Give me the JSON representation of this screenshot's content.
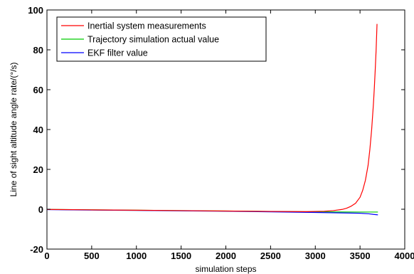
{
  "chart_data": {
    "type": "line",
    "title": "",
    "xlabel": "simulation steps",
    "ylabel": "Line of sight altitude angle rate/(°/s)",
    "xlim": [
      0,
      4000
    ],
    "ylim": [
      -20,
      100
    ],
    "xticks": [
      0,
      500,
      1000,
      1500,
      2000,
      2500,
      3000,
      3500,
      4000
    ],
    "yticks": [
      -20,
      0,
      20,
      40,
      60,
      80,
      100
    ],
    "grid": false,
    "legend_position": "top-left",
    "series": [
      {
        "name": "Inertial system measurements",
        "color": "#ff0000",
        "x": [
          0,
          500,
          1000,
          1500,
          2000,
          2500,
          2900,
          3100,
          3200,
          3300,
          3350,
          3400,
          3450,
          3500,
          3530,
          3560,
          3590,
          3610,
          3630,
          3650,
          3660,
          3670,
          3680,
          3690
        ],
        "y": [
          -0.1,
          -0.3,
          -0.5,
          -0.7,
          -0.9,
          -1.1,
          -1.2,
          -1.0,
          -0.7,
          -0.1,
          0.5,
          1.5,
          3.0,
          6.0,
          9.5,
          14.5,
          22.0,
          30.0,
          40.0,
          53.0,
          61.0,
          70.0,
          80.0,
          93.0
        ]
      },
      {
        "name": "Trajectory simulation actual value",
        "color": "#00cc00",
        "x": [
          0,
          500,
          1000,
          1500,
          2000,
          2500,
          3000,
          3500,
          3700
        ],
        "y": [
          -0.1,
          -0.3,
          -0.5,
          -0.7,
          -0.9,
          -1.1,
          -1.3,
          -1.4,
          -1.4
        ]
      },
      {
        "name": "EKF filter value",
        "color": "#0000ff",
        "x": [
          0,
          500,
          1000,
          1500,
          2000,
          2500,
          3000,
          3500,
          3600,
          3650,
          3700
        ],
        "y": [
          -0.2,
          -0.4,
          -0.6,
          -0.8,
          -1.0,
          -1.3,
          -1.6,
          -2.0,
          -2.3,
          -2.6,
          -2.8
        ]
      }
    ]
  }
}
